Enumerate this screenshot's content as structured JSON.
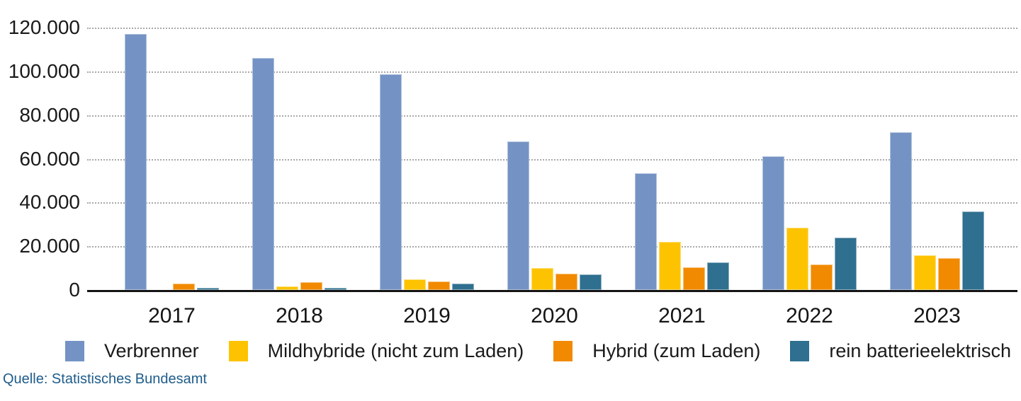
{
  "chart_data": {
    "type": "bar",
    "title": "",
    "xlabel": "",
    "ylabel": "",
    "categories": [
      "2017",
      "2018",
      "2019",
      "2020",
      "2021",
      "2022",
      "2023"
    ],
    "series": [
      {
        "name": "Verbrenner",
        "color": "#7493c4",
        "values": [
          117000,
          106000,
          98500,
          68000,
          53500,
          61000,
          72000
        ]
      },
      {
        "name": "Mildhybride (nicht zum Laden)",
        "color": "#fdc300",
        "values": [
          0,
          1500,
          5000,
          10000,
          22000,
          28500,
          16000
        ]
      },
      {
        "name": "Hybrid (zum Laden)",
        "color": "#f18a00",
        "values": [
          3000,
          3500,
          4000,
          7500,
          10500,
          11500,
          14500
        ]
      },
      {
        "name": "rein batterieelektrisch",
        "color": "#2f6f8f",
        "values": [
          1000,
          1000,
          3000,
          7000,
          12500,
          24000,
          36000
        ]
      }
    ],
    "ylim": [
      0,
      120000
    ],
    "y_ticks": [
      {
        "value": 120000,
        "label": "120.000"
      },
      {
        "value": 100000,
        "label": "100.000"
      },
      {
        "value": 80000,
        "label": "80.000"
      },
      {
        "value": 60000,
        "label": "60.000"
      },
      {
        "value": 40000,
        "label": "40.000"
      },
      {
        "value": 20000,
        "label": "20.000"
      },
      {
        "value": 0,
        "label": "0"
      }
    ],
    "grid": "horizontal dotted lines at 20.000 steps, none at 0 (solid black baseline)",
    "legend_position": "bottom"
  },
  "source": "Quelle: Statistisches Bundesamt",
  "colors": {
    "background": "#ffffff",
    "axis_line": "#141414",
    "gridline": "#a9a9a9",
    "tick_text": "#1a1a1a",
    "source_text": "#1e5c8b"
  }
}
